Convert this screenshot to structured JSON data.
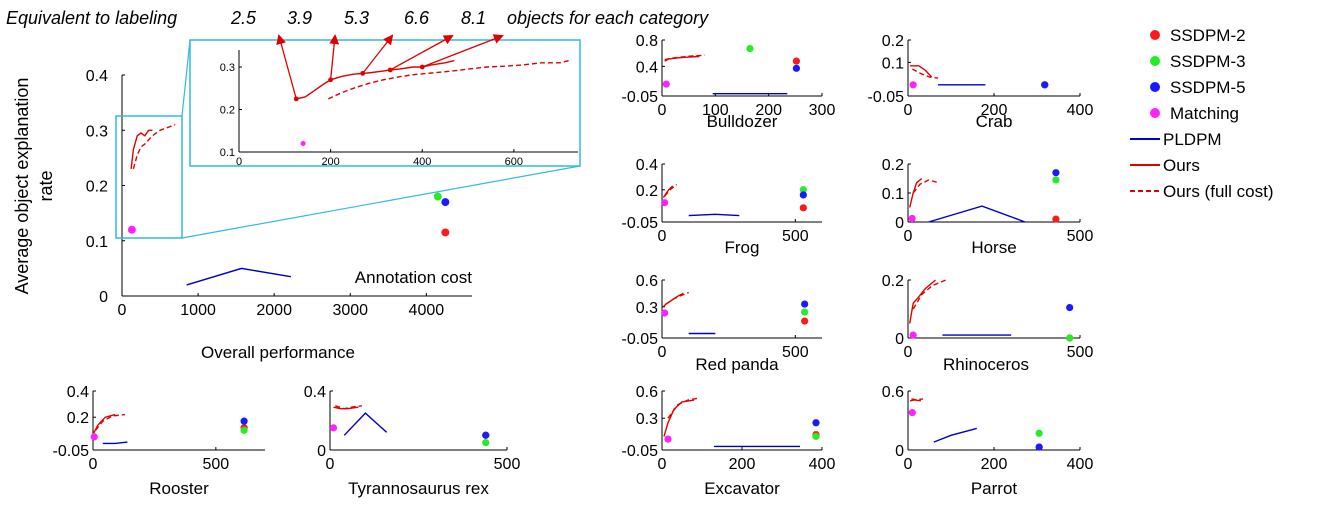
{
  "annotation": {
    "text": "Equivalent to labeling",
    "values": [
      "2.5",
      "3.9",
      "5.3",
      "6.6",
      "8.1"
    ],
    "suffix": "objects for each category"
  },
  "legend": [
    {
      "label": "SSDPM-2",
      "color": "#ff1a1a",
      "kind": "dot"
    },
    {
      "label": "SSDPM-3",
      "color": "#22ee22",
      "kind": "dot"
    },
    {
      "label": "SSDPM-5",
      "color": "#1a1aff",
      "kind": "dot"
    },
    {
      "label": "Matching",
      "color": "#ff22ff",
      "kind": "dot"
    },
    {
      "label": "PLDPM",
      "color": "#0000cc",
      "kind": "line"
    },
    {
      "label": "Ours",
      "color": "#e00000",
      "kind": "line"
    },
    {
      "label": "Ours (full cost)",
      "color": "#e00000",
      "kind": "dashed"
    }
  ],
  "colors": {
    "ssdpm2": "#ff1a1a",
    "ssdpm3": "#22ee22",
    "ssdpm5": "#1a1aff",
    "matching": "#ff22ff",
    "pldpm": "#0000cc",
    "ours": "#e00000",
    "zoom": "#33bbdd"
  },
  "chart_data": [
    {
      "id": "overall",
      "type": "scatter",
      "title": "Overall performance",
      "ylabel_lines": [
        "Average object explanation",
        "rate"
      ],
      "xlabel": "Annotation cost",
      "xlim": [
        0,
        4600
      ],
      "ylim": [
        0,
        0.4
      ],
      "xticks": [
        "0",
        "1000",
        "2000",
        "3000",
        "4000"
      ],
      "xtick_values": [
        0,
        1000,
        2000,
        3000,
        4000
      ],
      "yticks": [
        "0",
        "0.1",
        "0.2",
        "0.3",
        "0.4"
      ],
      "ytick_values": [
        0,
        0.1,
        0.2,
        0.3,
        0.4
      ],
      "points": {
        "SSDPM-2": [
          4250,
          0.115
        ],
        "SSDPM-3": [
          4150,
          0.18
        ],
        "SSDPM-5": [
          4250,
          0.17
        ],
        "Matching": [
          130,
          0.12
        ]
      },
      "pldpm": [
        [
          850,
          0.02
        ],
        [
          1570,
          0.05
        ],
        [
          2220,
          0.035
        ]
      ],
      "ours": [
        [
          120,
          0.23
        ],
        [
          150,
          0.265
        ],
        [
          200,
          0.29
        ],
        [
          250,
          0.295
        ],
        [
          300,
          0.29
        ],
        [
          350,
          0.3
        ],
        [
          400,
          0.3
        ]
      ],
      "ours_full": [
        [
          150,
          0.23
        ],
        [
          200,
          0.255
        ],
        [
          250,
          0.27
        ],
        [
          300,
          0.275
        ],
        [
          400,
          0.29
        ],
        [
          500,
          0.3
        ],
        [
          600,
          0.305
        ],
        [
          700,
          0.31
        ]
      ]
    },
    {
      "id": "inset",
      "type": "line",
      "title": "",
      "xlim": [
        0,
        740
      ],
      "ylim": [
        0.1,
        0.34
      ],
      "xticks": [
        "0",
        "200",
        "400",
        "600"
      ],
      "xtick_values": [
        0,
        200,
        400,
        600
      ],
      "yticks": [
        "0.1",
        "0.2",
        "0.3"
      ],
      "ytick_values": [
        0.1,
        0.2,
        0.3
      ],
      "points": {
        "Matching": [
          140,
          0.12
        ]
      },
      "ours": [
        [
          125,
          0.225
        ],
        [
          145,
          0.23
        ],
        [
          165,
          0.245
        ],
        [
          185,
          0.26
        ],
        [
          200,
          0.27
        ],
        [
          225,
          0.278
        ],
        [
          250,
          0.283
        ],
        [
          270,
          0.285
        ],
        [
          290,
          0.287
        ],
        [
          310,
          0.29
        ],
        [
          330,
          0.293
        ],
        [
          350,
          0.295
        ],
        [
          380,
          0.3
        ],
        [
          400,
          0.3
        ],
        [
          420,
          0.305
        ],
        [
          450,
          0.31
        ],
        [
          470,
          0.315
        ]
      ],
      "ours_full": [
        [
          195,
          0.225
        ],
        [
          225,
          0.24
        ],
        [
          255,
          0.252
        ],
        [
          285,
          0.262
        ],
        [
          315,
          0.27
        ],
        [
          345,
          0.276
        ],
        [
          380,
          0.282
        ],
        [
          420,
          0.286
        ],
        [
          460,
          0.29
        ],
        [
          500,
          0.295
        ],
        [
          540,
          0.3
        ],
        [
          580,
          0.302
        ],
        [
          620,
          0.305
        ],
        [
          660,
          0.31
        ],
        [
          700,
          0.31
        ],
        [
          720,
          0.315
        ]
      ],
      "markers": [
        [
          125,
          0.225
        ],
        [
          200,
          0.27
        ],
        [
          270,
          0.285
        ],
        [
          330,
          0.293
        ],
        [
          400,
          0.3
        ]
      ]
    },
    {
      "id": "bulldozer",
      "type": "scatter",
      "title": "Bulldozer",
      "xlim": [
        0,
        300
      ],
      "ylim": [
        -0.05,
        0.8
      ],
      "xticks": [
        "0",
        "100",
        "200",
        "300"
      ],
      "xtick_values": [
        0,
        100,
        200,
        300
      ],
      "yticks": [
        "-0.05",
        "0.4",
        "0.8"
      ],
      "ytick_values": [
        -0.05,
        0.4,
        0.8
      ],
      "points": {
        "SSDPM-2": [
          252,
          0.48
        ],
        "SSDPM-3": [
          165,
          0.67
        ],
        "SSDPM-5": [
          252,
          0.37
        ],
        "Matching": [
          8,
          0.13
        ]
      },
      "pldpm": [
        [
          95,
          -0.015
        ],
        [
          235,
          -0.015
        ]
      ],
      "ours": [
        [
          5,
          0.48
        ],
        [
          12,
          0.51
        ],
        [
          30,
          0.53
        ],
        [
          50,
          0.54
        ],
        [
          70,
          0.55
        ]
      ],
      "ours_full": [
        [
          5,
          0.5
        ],
        [
          15,
          0.52
        ],
        [
          35,
          0.54
        ],
        [
          60,
          0.56
        ],
        [
          80,
          0.57
        ]
      ]
    },
    {
      "id": "crab",
      "type": "scatter",
      "title": "Crab",
      "xlim": [
        0,
        400
      ],
      "ylim": [
        -0.05,
        0.2
      ],
      "xticks": [
        "0",
        "200",
        "400"
      ],
      "xtick_values": [
        0,
        200,
        400
      ],
      "yticks": [
        "-0.05",
        "0.1",
        "0.2"
      ],
      "ytick_values": [
        -0.05,
        0.1,
        0.2
      ],
      "points": {
        "SSDPM-2": [
          318,
          0.0
        ],
        "SSDPM-3": [
          318,
          0.0
        ],
        "SSDPM-5": [
          318,
          0.0
        ],
        "Matching": [
          12,
          0.0
        ]
      },
      "pldpm": [
        [
          70,
          0.0
        ],
        [
          180,
          0.0
        ]
      ],
      "ours": [
        [
          5,
          0.085
        ],
        [
          25,
          0.085
        ],
        [
          40,
          0.065
        ],
        [
          55,
          0.035
        ]
      ],
      "ours_full": [
        [
          10,
          0.07
        ],
        [
          30,
          0.05
        ],
        [
          50,
          0.035
        ],
        [
          70,
          0.03
        ]
      ]
    },
    {
      "id": "frog",
      "type": "scatter",
      "title": "Frog",
      "xlim": [
        0,
        600
      ],
      "ylim": [
        -0.05,
        0.4
      ],
      "xticks": [
        "0",
        "500"
      ],
      "xtick_values": [
        0,
        500
      ],
      "yticks": [
        "-0.05",
        "0.2",
        "0.4"
      ],
      "ytick_values": [
        -0.05,
        0.2,
        0.4
      ],
      "points": {
        "SSDPM-2": [
          530,
          0.06
        ],
        "SSDPM-3": [
          530,
          0.2
        ],
        "SSDPM-5": [
          530,
          0.16
        ],
        "Matching": [
          10,
          0.1
        ]
      },
      "pldpm": [
        [
          100,
          0.0
        ],
        [
          200,
          0.01
        ],
        [
          290,
          0.0
        ]
      ],
      "ours": [
        [
          5,
          0.14
        ],
        [
          15,
          0.17
        ],
        [
          25,
          0.2
        ],
        [
          40,
          0.23
        ]
      ],
      "ours_full": [
        [
          10,
          0.15
        ],
        [
          30,
          0.2
        ],
        [
          55,
          0.24
        ]
      ]
    },
    {
      "id": "horse",
      "type": "scatter",
      "title": "Horse",
      "xlim": [
        0,
        500
      ],
      "ylim": [
        0,
        0.2
      ],
      "xticks": [
        "0",
        "500"
      ],
      "xtick_values": [
        0,
        500
      ],
      "yticks": [
        "0",
        "0.1",
        "0.2"
      ],
      "ytick_values": [
        0,
        0.1,
        0.2
      ],
      "points": {
        "SSDPM-2": [
          430,
          0.01
        ],
        "SSDPM-3": [
          430,
          0.145
        ],
        "SSDPM-5": [
          430,
          0.17
        ],
        "Matching": [
          12,
          0.012
        ]
      },
      "pldpm": [
        [
          60,
          0.0
        ],
        [
          215,
          0.055
        ],
        [
          340,
          0.0
        ]
      ],
      "ours": [
        [
          5,
          0.05
        ],
        [
          15,
          0.1
        ],
        [
          25,
          0.135
        ],
        [
          40,
          0.15
        ]
      ],
      "ours_full": [
        [
          15,
          0.1
        ],
        [
          35,
          0.13
        ],
        [
          60,
          0.145
        ],
        [
          90,
          0.135
        ]
      ]
    },
    {
      "id": "redpanda",
      "type": "scatter",
      "title": "Red panda",
      "xlim": [
        0,
        600
      ],
      "ylim": [
        -0.05,
        0.6
      ],
      "xticks": [
        "0",
        "500"
      ],
      "xtick_values": [
        0,
        500
      ],
      "yticks": [
        "-0.05",
        "0.3",
        "0.6"
      ],
      "ytick_values": [
        -0.05,
        0.3,
        0.6
      ],
      "points": {
        "SSDPM-2": [
          535,
          0.14
        ],
        "SSDPM-3": [
          535,
          0.24
        ],
        "SSDPM-5": [
          535,
          0.33
        ],
        "Matching": [
          10,
          0.23
        ]
      },
      "pldpm": [
        [
          100,
          0.0
        ],
        [
          200,
          0.0
        ]
      ],
      "ours": [
        [
          5,
          0.3
        ],
        [
          15,
          0.33
        ],
        [
          35,
          0.37
        ],
        [
          60,
          0.42
        ],
        [
          80,
          0.45
        ]
      ],
      "ours_full": [
        [
          15,
          0.33
        ],
        [
          45,
          0.39
        ],
        [
          75,
          0.43
        ],
        [
          100,
          0.46
        ]
      ]
    },
    {
      "id": "rhinoceros",
      "type": "scatter",
      "title": "Rhinoceros",
      "xlim": [
        0,
        500
      ],
      "ylim": [
        0,
        0.2
      ],
      "xticks": [
        "0",
        "500"
      ],
      "xtick_values": [
        0,
        500
      ],
      "yticks": [
        "0",
        "0.2"
      ],
      "ytick_values": [
        0,
        0.2
      ],
      "points": {
        "SSDPM-2": [
          470,
          0.0
        ],
        "SSDPM-3": [
          470,
          0.0
        ],
        "SSDPM-5": [
          470,
          0.105
        ],
        "Matching": [
          15,
          0.01
        ]
      },
      "pldpm": [
        [
          100,
          0.01
        ],
        [
          300,
          0.01
        ]
      ],
      "ours": [
        [
          5,
          0.05
        ],
        [
          15,
          0.12
        ],
        [
          30,
          0.14
        ],
        [
          50,
          0.17
        ],
        [
          80,
          0.2
        ]
      ],
      "ours_full": [
        [
          15,
          0.1
        ],
        [
          40,
          0.15
        ],
        [
          70,
          0.18
        ],
        [
          110,
          0.2
        ]
      ]
    },
    {
      "id": "rooster",
      "type": "scatter",
      "title": "Rooster",
      "xlim": [
        0,
        700
      ],
      "ylim": [
        -0.05,
        0.4
      ],
      "xticks": [
        "0",
        "500"
      ],
      "xtick_values": [
        0,
        500
      ],
      "yticks": [
        "-0.05",
        "0.2",
        "0.4"
      ],
      "ytick_values": [
        -0.05,
        0.2,
        0.4
      ],
      "points": {
        "SSDPM-2": [
          615,
          0.12
        ],
        "SSDPM-3": [
          615,
          0.1
        ],
        "SSDPM-5": [
          615,
          0.17
        ],
        "Matching": [
          5,
          0.05
        ]
      },
      "pldpm": [
        [
          40,
          0.0
        ],
        [
          90,
          0.0
        ],
        [
          140,
          0.01
        ]
      ],
      "ours": [
        [
          3,
          0.08
        ],
        [
          20,
          0.14
        ],
        [
          50,
          0.2
        ],
        [
          90,
          0.22
        ]
      ],
      "ours_full": [
        [
          10,
          0.1
        ],
        [
          40,
          0.17
        ],
        [
          80,
          0.21
        ],
        [
          130,
          0.22
        ]
      ]
    },
    {
      "id": "trex",
      "type": "scatter",
      "title": "Tyrannosaurus rex",
      "xlim": [
        0,
        500
      ],
      "ylim": [
        0,
        0.4
      ],
      "xticks": [
        "0",
        "500"
      ],
      "xtick_values": [
        0,
        500
      ],
      "yticks": [
        "0",
        "0.4"
      ],
      "ytick_values": [
        0,
        0.4
      ],
      "points": {
        "SSDPM-2": [
          440,
          0.1
        ],
        "SSDPM-3": [
          440,
          0.05
        ],
        "SSDPM-5": [
          440,
          0.1
        ],
        "Matching": [
          10,
          0.15
        ]
      },
      "pldpm": [
        [
          40,
          0.1
        ],
        [
          100,
          0.25
        ],
        [
          160,
          0.12
        ]
      ],
      "ours": [
        [
          10,
          0.29
        ],
        [
          30,
          0.28
        ],
        [
          50,
          0.28
        ],
        [
          80,
          0.29
        ]
      ],
      "ours_full": [
        [
          15,
          0.3
        ],
        [
          40,
          0.28
        ],
        [
          60,
          0.29
        ],
        [
          90,
          0.3
        ]
      ]
    },
    {
      "id": "excavator",
      "type": "scatter",
      "title": "Excavator",
      "xlim": [
        0,
        400
      ],
      "ylim": [
        -0.05,
        0.6
      ],
      "xticks": [
        "0",
        "200",
        "400"
      ],
      "xtick_values": [
        0,
        200,
        400
      ],
      "yticks": [
        "-0.05",
        "0.3",
        "0.6"
      ],
      "ytick_values": [
        -0.05,
        0.3,
        0.6
      ],
      "points": {
        "SSDPM-2": [
          385,
          0.12
        ],
        "SSDPM-3": [
          385,
          0.1
        ],
        "SSDPM-5": [
          385,
          0.25
        ],
        "Matching": [
          15,
          0.07
        ]
      },
      "pldpm": [
        [
          130,
          -0.01
        ],
        [
          345,
          -0.01
        ]
      ],
      "ours": [
        [
          5,
          0.1
        ],
        [
          15,
          0.25
        ],
        [
          30,
          0.4
        ],
        [
          50,
          0.48
        ],
        [
          80,
          0.5
        ]
      ],
      "ours_full": [
        [
          15,
          0.3
        ],
        [
          40,
          0.45
        ],
        [
          65,
          0.5
        ],
        [
          90,
          0.52
        ]
      ]
    },
    {
      "id": "parrot",
      "type": "scatter",
      "title": "Parrot",
      "xlim": [
        0,
        400
      ],
      "ylim": [
        0,
        0.6
      ],
      "xticks": [
        "0",
        "200",
        "400"
      ],
      "xtick_values": [
        0,
        200,
        400
      ],
      "yticks": [
        "0",
        "0.6"
      ],
      "ytick_values": [
        0,
        0.6
      ],
      "points": {
        "SSDPM-2": [
          305,
          0.03
        ],
        "SSDPM-3": [
          305,
          0.17
        ],
        "SSDPM-5": [
          305,
          0.03
        ],
        "Matching": [
          10,
          0.38
        ]
      },
      "pldpm": [
        [
          60,
          0.08
        ],
        [
          100,
          0.15
        ],
        [
          160,
          0.22
        ]
      ],
      "ours": [
        [
          5,
          0.5
        ],
        [
          15,
          0.51
        ],
        [
          30,
          0.5
        ]
      ],
      "ours_full": [
        [
          8,
          0.52
        ],
        [
          20,
          0.51
        ],
        [
          35,
          0.52
        ]
      ]
    }
  ]
}
